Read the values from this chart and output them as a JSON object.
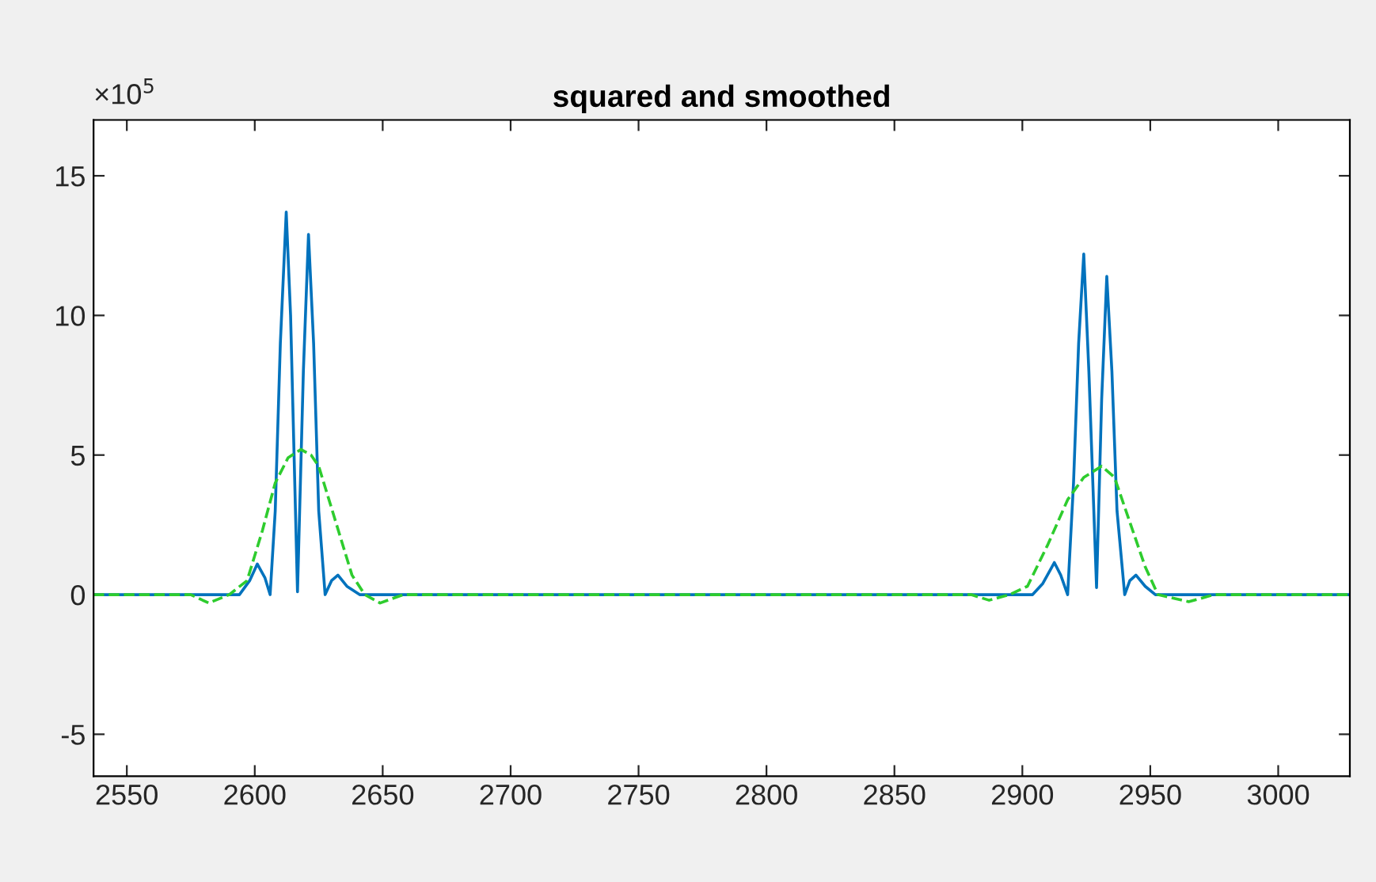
{
  "chart_data": {
    "type": "line",
    "title": "squared and smoothed",
    "annotations": [
      "×10$^{5}$"
    ],
    "xlim": [
      2537,
      3028
    ],
    "xticks": [
      2550,
      2600,
      2650,
      2700,
      2750,
      2800,
      2850,
      2900,
      2950,
      3000
    ],
    "ylim": [
      -6.5,
      17
    ],
    "yticks": [
      -5,
      0,
      5,
      10,
      15
    ],
    "grid": false,
    "legend": false,
    "series": [
      {
        "color": "#0072bd",
        "line_style": "solid",
        "x": [
          2537,
          2594,
          2598,
          2601,
          2604,
          2606,
          2608,
          2610,
          2612.3,
          2614,
          2616.7,
          2619,
          2621,
          2623,
          2625,
          2627.5,
          2630,
          2632.5,
          2636,
          2641,
          2904,
          2908,
          2912.5,
          2915,
          2917.7,
          2920,
          2922,
          2924,
          2926,
          2929,
          2931,
          2933,
          2935,
          2937,
          2940,
          2942,
          2944.4,
          2948,
          2952,
          3028
        ],
        "values": [
          0,
          0,
          0.5,
          1.1,
          0.6,
          0,
          3,
          9,
          13.7,
          10,
          0.1,
          8,
          12.9,
          9,
          3,
          0,
          0.5,
          0.7,
          0.3,
          0,
          0,
          0.4,
          1.15,
          0.7,
          0,
          4,
          9,
          12.2,
          8,
          0.25,
          7,
          11.4,
          8,
          3,
          0,
          0.5,
          0.7,
          0.3,
          0,
          0
        ]
      },
      {
        "color": "#2ecc2e",
        "line_style": "dashed",
        "x": [
          2537,
          2575,
          2582,
          2590,
          2597,
          2603,
          2608,
          2613,
          2618,
          2622,
          2625,
          2631,
          2638,
          2643,
          2649,
          2658,
          2880,
          2887,
          2895,
          2902,
          2910,
          2917.7,
          2924,
          2931,
          2936,
          2942,
          2948,
          2953,
          2965,
          2975,
          3028
        ],
        "values": [
          0,
          0,
          -0.3,
          0,
          0.5,
          2.3,
          4.0,
          4.9,
          5.2,
          5.0,
          4.6,
          2.8,
          0.7,
          0,
          -0.3,
          0,
          0,
          -0.2,
          0,
          0.3,
          1.8,
          3.4,
          4.2,
          4.6,
          4.2,
          2.6,
          1.0,
          0,
          -0.25,
          0,
          0
        ]
      }
    ]
  }
}
